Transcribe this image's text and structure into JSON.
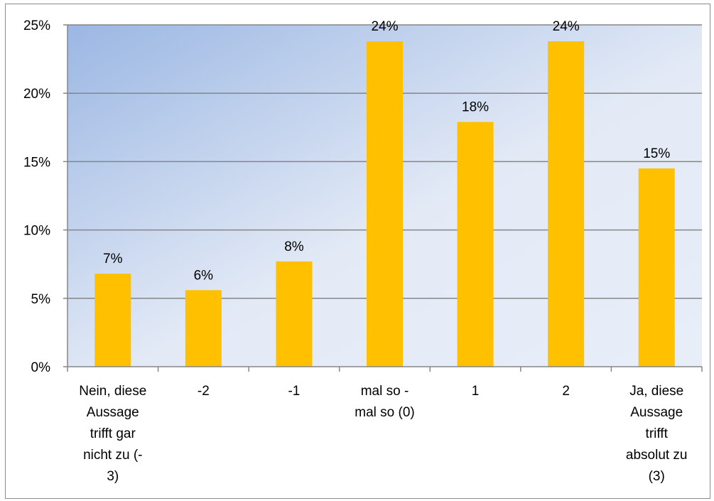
{
  "chart_data": {
    "type": "bar",
    "categories": [
      [
        "Nein, diese",
        "Aussage",
        "trifft gar",
        "nicht zu (-",
        "3)"
      ],
      [
        "-2"
      ],
      [
        "-1"
      ],
      [
        "mal so -",
        "mal so (0)"
      ],
      [
        "1"
      ],
      [
        "2"
      ],
      [
        "Ja, diese",
        "Aussage",
        "trifft",
        "absolut zu",
        "(3)"
      ]
    ],
    "values": [
      6.8,
      5.6,
      7.7,
      23.8,
      17.9,
      23.8,
      14.5
    ],
    "data_labels": [
      "7%",
      "6%",
      "8%",
      "24%",
      "18%",
      "24%",
      "15%"
    ],
    "y_ticks": [
      0,
      5,
      10,
      15,
      20,
      25
    ],
    "y_tick_labels": [
      "0%",
      "5%",
      "10%",
      "15%",
      "20%",
      "25%"
    ],
    "ylim": [
      0,
      25
    ],
    "grid": true,
    "legend": "none",
    "bar_color": "#FFC000",
    "gridline_color": "#868686",
    "plot_gradient_start": "#9BB7E3",
    "plot_gradient_end": "#E8EEF8"
  }
}
